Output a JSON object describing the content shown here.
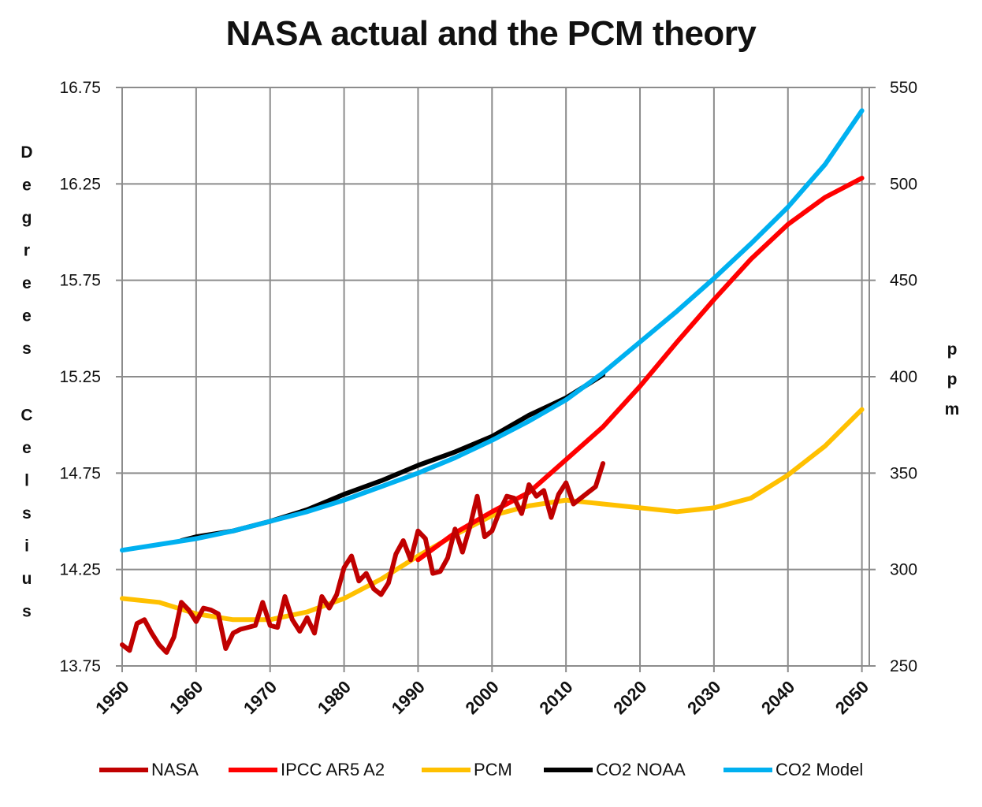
{
  "chart_data": {
    "type": "line",
    "title": "NASA actual and the PCM theory",
    "left_axis": {
      "label": "Degrees Celsius",
      "ticks": [
        "16.75",
        "16.25",
        "15.75",
        "15.25",
        "14.75",
        "14.25",
        "13.75"
      ],
      "range": [
        13.75,
        16.75
      ]
    },
    "right_axis": {
      "label": "ppm",
      "ticks": [
        "550",
        "500",
        "450",
        "400",
        "350",
        "300",
        "250"
      ],
      "range": [
        250,
        550
      ]
    },
    "x_axis": {
      "ticks": [
        "1950",
        "1960",
        "1970",
        "1980",
        "1990",
        "2000",
        "2010",
        "2020",
        "2030",
        "2040",
        "2050"
      ],
      "range": [
        1950,
        2051
      ]
    },
    "grid": true,
    "legend_position": "bottom",
    "series": [
      {
        "name": "NASA",
        "axis": "left",
        "color": "#c00000",
        "x": [
          1950,
          1951,
          1952,
          1953,
          1954,
          1955,
          1956,
          1957,
          1958,
          1959,
          1960,
          1961,
          1962,
          1963,
          1964,
          1965,
          1966,
          1967,
          1968,
          1969,
          1970,
          1971,
          1972,
          1973,
          1974,
          1975,
          1976,
          1977,
          1978,
          1979,
          1980,
          1981,
          1982,
          1983,
          1984,
          1985,
          1986,
          1987,
          1988,
          1989,
          1990,
          1991,
          1992,
          1993,
          1994,
          1995,
          1996,
          1997,
          1998,
          1999,
          2000,
          2001,
          2002,
          2003,
          2004,
          2005,
          2006,
          2007,
          2008,
          2009,
          2010,
          2011,
          2012,
          2013,
          2014,
          2015
        ],
        "y": [
          13.86,
          13.83,
          13.97,
          13.99,
          13.92,
          13.86,
          13.82,
          13.9,
          14.08,
          14.04,
          13.98,
          14.05,
          14.04,
          14.02,
          13.84,
          13.92,
          13.94,
          13.95,
          13.96,
          14.08,
          13.96,
          13.95,
          14.11,
          13.99,
          13.93,
          14.0,
          13.92,
          14.11,
          14.05,
          14.12,
          14.26,
          14.32,
          14.19,
          14.23,
          14.15,
          14.12,
          14.18,
          14.33,
          14.4,
          14.3,
          14.45,
          14.41,
          14.23,
          14.24,
          14.31,
          14.46,
          14.34,
          14.47,
          14.63,
          14.42,
          14.45,
          14.55,
          14.63,
          14.62,
          14.54,
          14.69,
          14.63,
          14.66,
          14.52,
          14.64,
          14.7,
          14.59,
          14.62,
          14.65,
          14.68,
          14.8
        ]
      },
      {
        "name": "IPCC AR5 A2",
        "axis": "left",
        "color": "#ff0000",
        "x": [
          1990,
          1995,
          2000,
          2005,
          2010,
          2015,
          2020,
          2025,
          2030,
          2035,
          2040,
          2045,
          2050
        ],
        "y": [
          14.3,
          14.44,
          14.55,
          14.65,
          14.82,
          14.99,
          15.2,
          15.43,
          15.65,
          15.86,
          16.04,
          16.18,
          16.28
        ]
      },
      {
        "name": "PCM",
        "axis": "left",
        "color": "#ffc000",
        "x": [
          1950,
          1955,
          1960,
          1965,
          1970,
          1975,
          1980,
          1985,
          1990,
          1995,
          2000,
          2005,
          2010,
          2015,
          2020,
          2025,
          2030,
          2035,
          2040,
          2045,
          2050
        ],
        "y": [
          14.1,
          14.08,
          14.02,
          13.99,
          13.99,
          14.03,
          14.1,
          14.2,
          14.32,
          14.43,
          14.53,
          14.58,
          14.61,
          14.59,
          14.57,
          14.55,
          14.57,
          14.62,
          14.74,
          14.89,
          15.08
        ]
      },
      {
        "name": "CO2 NOAA",
        "axis": "right",
        "color": "#000000",
        "x": [
          1958,
          1960,
          1965,
          1970,
          1975,
          1980,
          1985,
          1990,
          1995,
          2000,
          2005,
          2010,
          2015
        ],
        "y": [
          315,
          317,
          320,
          325,
          331,
          339,
          346,
          354,
          361,
          369,
          380,
          389,
          401
        ]
      },
      {
        "name": "CO2 Model",
        "axis": "right",
        "color": "#00b0f0",
        "x": [
          1950,
          1955,
          1960,
          1965,
          1970,
          1975,
          1980,
          1985,
          1990,
          1995,
          2000,
          2005,
          2010,
          2015,
          2020,
          2025,
          2030,
          2035,
          2040,
          2045,
          2050
        ],
        "y": [
          310,
          313,
          316,
          320,
          325,
          330,
          336,
          343,
          350,
          358,
          367,
          377,
          388,
          402,
          418,
          434,
          451,
          469,
          488,
          510,
          538
        ]
      }
    ]
  }
}
